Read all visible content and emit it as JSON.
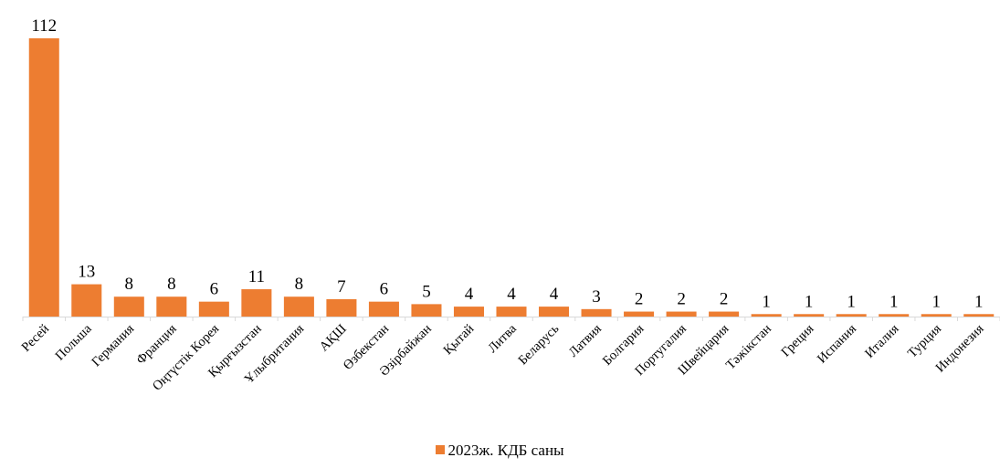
{
  "chart_data": {
    "type": "bar",
    "title": "",
    "xlabel": "",
    "ylabel": "",
    "ylim": [
      0,
      112
    ],
    "grid": false,
    "legend_position": "bottom",
    "categories": [
      "Ресей",
      "Польша",
      "Германия",
      "Франция",
      "Оңтүстік Корея",
      "Қырғызстан",
      "Ұлыбритания",
      "АҚШ",
      "Өзбекстан",
      "Әзірбайжан",
      "Қытай",
      "Литва",
      "Беларусь",
      "Латвия",
      "Болгария",
      "Португалия",
      "Швейцария",
      "Тәжікстан",
      "Греция",
      "Испания",
      "Италия",
      "Турция",
      "Индонезия"
    ],
    "series": [
      {
        "name": "2023ж. КДБ саны",
        "color": "#ED7D31",
        "values": [
          112,
          13,
          8,
          8,
          6,
          11,
          8,
          7,
          6,
          5,
          4,
          4,
          4,
          3,
          2,
          2,
          2,
          1,
          1,
          1,
          1,
          1,
          1
        ]
      }
    ]
  }
}
